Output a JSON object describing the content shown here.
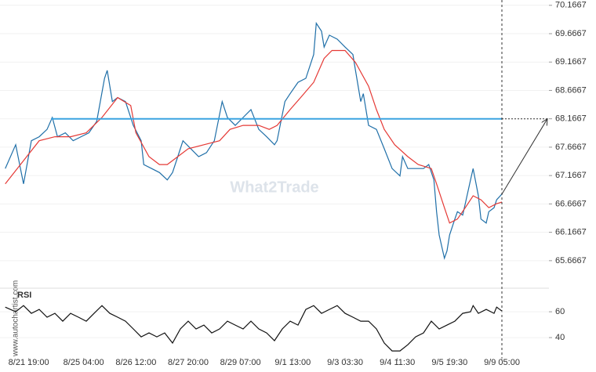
{
  "watermark": "What2Trade",
  "source": "www.autochartist.com",
  "chart_data": [
    {
      "type": "line",
      "grid": true,
      "xlim": [
        0,
        210
      ],
      "ylim": [
        65.43,
        70.26
      ],
      "yticks": [
        65.6667,
        66.1667,
        66.6667,
        67.1667,
        67.6667,
        68.1667,
        68.6667,
        69.1667,
        69.6667,
        70.1667
      ],
      "level": 68.1667,
      "level_color": "#3aa3e0",
      "series": [
        {
          "color": "#1f6fa8",
          "x": [
            2,
            6,
            9,
            12,
            15,
            18,
            20,
            22,
            25,
            28,
            31,
            34,
            37,
            40,
            41,
            43,
            45,
            48,
            51,
            54,
            55,
            58,
            61,
            64,
            66,
            68,
            70,
            73,
            76,
            79,
            82,
            85,
            87,
            90,
            93,
            96,
            99,
            102,
            105,
            106,
            109,
            111,
            114,
            117,
            120,
            121,
            123,
            124,
            126,
            129,
            132,
            135,
            136,
            138,
            139,
            141,
            144,
            147,
            150,
            153,
            154,
            156,
            159,
            162,
            164,
            166,
            167,
            168,
            170,
            171,
            172,
            174,
            175,
            177,
            178,
            180,
            181,
            183,
            184,
            186,
            187,
            189,
            190,
            192
          ],
          "values": [
            67.29,
            67.71,
            67.02,
            67.78,
            67.85,
            67.98,
            68.19,
            67.85,
            67.92,
            67.78,
            67.85,
            67.92,
            68.12,
            68.88,
            69.02,
            68.47,
            68.54,
            68.47,
            68.05,
            67.78,
            67.36,
            67.29,
            67.22,
            67.09,
            67.22,
            67.5,
            67.78,
            67.64,
            67.5,
            67.57,
            67.78,
            68.47,
            68.19,
            68.05,
            68.19,
            68.33,
            67.98,
            67.85,
            67.71,
            67.78,
            68.47,
            68.61,
            68.81,
            68.88,
            69.3,
            69.85,
            69.71,
            69.43,
            69.64,
            69.57,
            69.43,
            69.3,
            69.02,
            68.47,
            68.61,
            68.05,
            67.98,
            67.64,
            67.29,
            67.16,
            67.5,
            67.29,
            67.29,
            67.29,
            67.36,
            67.09,
            66.53,
            66.12,
            65.71,
            65.84,
            66.12,
            66.4,
            66.53,
            66.47,
            66.67,
            67.09,
            67.29,
            66.81,
            66.4,
            66.33,
            66.53,
            66.6,
            66.74,
            66.84
          ]
        },
        {
          "color": "#e53935",
          "x": [
            2,
            9,
            15,
            21,
            27,
            33,
            39,
            45,
            50,
            52,
            57,
            61,
            64,
            68,
            72,
            78,
            84,
            88,
            93,
            99,
            103,
            106,
            111,
            115,
            120,
            124,
            127,
            132,
            136,
            141,
            144,
            147,
            151,
            156,
            160,
            165,
            167,
            170,
            172,
            175,
            178,
            181,
            184,
            187,
            190,
            192
          ],
          "values": [
            67.02,
            67.43,
            67.78,
            67.85,
            67.85,
            67.92,
            68.19,
            68.54,
            68.4,
            67.92,
            67.5,
            67.36,
            67.36,
            67.5,
            67.64,
            67.71,
            67.78,
            67.98,
            68.05,
            68.05,
            67.98,
            68.05,
            68.33,
            68.54,
            68.81,
            69.23,
            69.37,
            69.37,
            69.16,
            68.74,
            68.33,
            67.98,
            67.71,
            67.5,
            67.36,
            67.29,
            67.02,
            66.6,
            66.33,
            66.4,
            66.6,
            66.81,
            66.74,
            66.6,
            66.67,
            66.7
          ]
        }
      ]
    },
    {
      "type": "line",
      "label": "RSI",
      "grid": true,
      "xlim": [
        0,
        210
      ],
      "ylim": [
        25.5,
        74
      ],
      "yticks": [
        40,
        60
      ],
      "xticks": [
        {
          "value": 11,
          "label": "8/21 19:00"
        },
        {
          "value": 32,
          "label": "8/25 04:00"
        },
        {
          "value": 52,
          "label": "8/26 12:00"
        },
        {
          "value": 72,
          "label": "8/27 20:00"
        },
        {
          "value": 92,
          "label": "8/29 07:00"
        },
        {
          "value": 112,
          "label": "9/1 13:00"
        },
        {
          "value": 132,
          "label": "9/3 03:30"
        },
        {
          "value": 152,
          "label": "9/4 11:30"
        },
        {
          "value": 172,
          "label": "9/5 19:30"
        },
        {
          "value": 192,
          "label": "9/9 05:00"
        }
      ],
      "series": [
        {
          "color": "#111111",
          "x": [
            2,
            6,
            9,
            12,
            15,
            18,
            21,
            24,
            27,
            30,
            33,
            36,
            39,
            42,
            45,
            48,
            51,
            54,
            57,
            60,
            63,
            66,
            69,
            72,
            75,
            78,
            81,
            84,
            87,
            90,
            93,
            96,
            99,
            102,
            105,
            108,
            111,
            114,
            117,
            120,
            123,
            126,
            129,
            132,
            135,
            138,
            141,
            144,
            147,
            150,
            153,
            156,
            159,
            162,
            165,
            168,
            171,
            174,
            177,
            180,
            181,
            183,
            186,
            189,
            190,
            192
          ],
          "values": [
            63.6,
            60,
            64.8,
            58.8,
            61.8,
            55.8,
            58.8,
            52.7,
            58.8,
            55.8,
            52.7,
            58.8,
            64.8,
            58.8,
            55.8,
            52.7,
            46.7,
            40.6,
            43.6,
            40.6,
            43.6,
            35.8,
            46.7,
            52.7,
            46.7,
            49.7,
            43.6,
            46.7,
            52.7,
            49.7,
            46.7,
            52.7,
            46.7,
            43.6,
            37.6,
            46.7,
            52.7,
            49.7,
            61.8,
            64.8,
            58.8,
            61.8,
            64.8,
            58.8,
            55.8,
            52.7,
            52.7,
            46.7,
            35.8,
            29.7,
            29.7,
            34.5,
            40.6,
            43.6,
            52.7,
            46.7,
            49.7,
            52.7,
            58.8,
            60,
            64.8,
            58.8,
            61.8,
            58.8,
            63.6,
            60.6
          ]
        }
      ]
    }
  ]
}
